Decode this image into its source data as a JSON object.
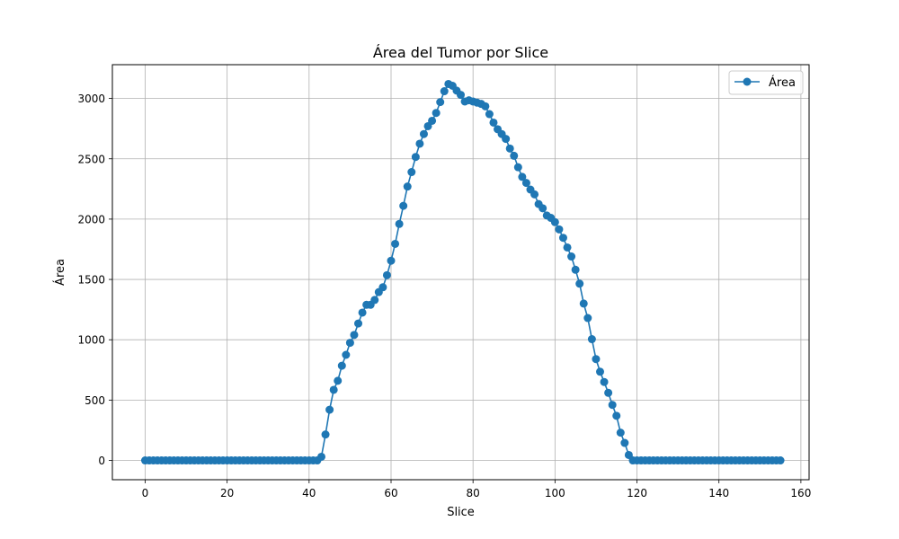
{
  "chart_data": {
    "type": "line",
    "title": "Área del Tumor por Slice",
    "xlabel": "Slice",
    "ylabel": "Área",
    "xlim": [
      -8,
      162
    ],
    "ylim": [
      -160,
      3280
    ],
    "xticks": [
      0,
      20,
      40,
      60,
      80,
      100,
      120,
      140,
      160
    ],
    "yticks": [
      0,
      500,
      1000,
      1500,
      2000,
      2500,
      3000
    ],
    "grid": true,
    "legend_position": "top-right",
    "series": [
      {
        "name": "Área",
        "color": "#1f77b4",
        "marker": "circle",
        "x_start": 0,
        "values": [
          0,
          0,
          0,
          0,
          0,
          0,
          0,
          0,
          0,
          0,
          0,
          0,
          0,
          0,
          0,
          0,
          0,
          0,
          0,
          0,
          0,
          0,
          0,
          0,
          0,
          0,
          0,
          0,
          0,
          0,
          0,
          0,
          0,
          0,
          0,
          0,
          0,
          0,
          0,
          0,
          0,
          0,
          0,
          30,
          215,
          420,
          585,
          660,
          785,
          875,
          975,
          1040,
          1135,
          1225,
          1290,
          1290,
          1330,
          1395,
          1435,
          1535,
          1655,
          1795,
          1960,
          2110,
          2270,
          2390,
          2515,
          2625,
          2705,
          2770,
          2815,
          2880,
          2970,
          3060,
          3120,
          3105,
          3065,
          3030,
          2975,
          2985,
          2975,
          2965,
          2955,
          2935,
          2870,
          2800,
          2745,
          2705,
          2665,
          2585,
          2525,
          2430,
          2350,
          2300,
          2245,
          2205,
          2125,
          2090,
          2030,
          2010,
          1975,
          1915,
          1845,
          1765,
          1690,
          1580,
          1465,
          1300,
          1180,
          1005,
          840,
          735,
          650,
          560,
          460,
          370,
          230,
          145,
          45,
          0,
          0,
          0,
          0,
          0,
          0,
          0,
          0,
          0,
          0,
          0,
          0,
          0,
          0,
          0,
          0,
          0,
          0,
          0,
          0,
          0,
          0,
          0,
          0,
          0,
          0,
          0,
          0,
          0,
          0,
          0,
          0,
          0,
          0,
          0,
          0,
          0
        ]
      }
    ]
  }
}
